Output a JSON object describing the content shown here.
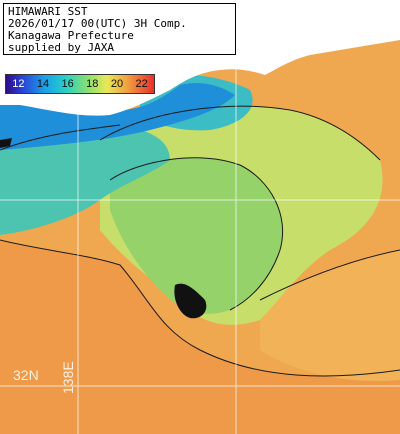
{
  "title": {
    "line1": "HIMAWARI SST",
    "line2": "2026/01/17 00(UTC) 3H Comp.",
    "line3": "Kanagawa Prefecture",
    "line4": "supplied by JAXA"
  },
  "colorbar": {
    "ticks": [
      "12",
      "14",
      "16",
      "18",
      "20",
      "22"
    ],
    "colors": [
      "#2e0c8a",
      "#2a48d8",
      "#1aa0e8",
      "#26d0c8",
      "#88e070",
      "#e8e858",
      "#f0a040",
      "#e8302c"
    ]
  },
  "graticule": {
    "lat_label": "32N",
    "lon_label": "138E"
  },
  "colors": {
    "land": "#ffffff",
    "missing": "#111111",
    "cold_water": "#1e8fd8",
    "cool_water": "#50c8b4",
    "mid_water": "#b4dc6e",
    "warm_water": "#f0a850"
  }
}
